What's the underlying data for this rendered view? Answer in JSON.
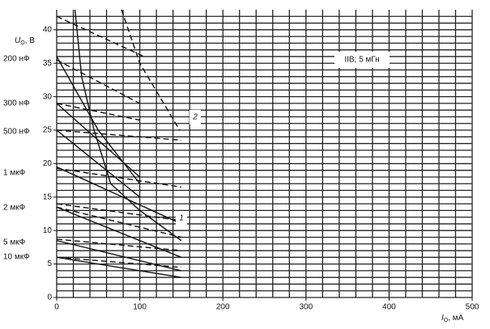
{
  "chart_data": {
    "type": "line",
    "y_label": {
      "symbol": "U",
      "sub": "O",
      "unit": ", В"
    },
    "x_label": {
      "symbol": "I",
      "sub": "O",
      "unit": ", мА"
    },
    "annotation": "IIB; 5 мГн",
    "curve_labels": [
      "1",
      "2"
    ],
    "capacitances": [
      "200 нФ",
      "300 нФ",
      "500 нФ",
      "1 мкФ",
      "2 мкФ",
      "5 мкФ",
      "10 мкФ"
    ],
    "xlim": [
      0,
      500
    ],
    "ylim": [
      0,
      43
    ],
    "xticks": [
      0,
      100,
      200,
      300,
      400,
      500
    ],
    "yticks": [
      0,
      5,
      10,
      15,
      20,
      25,
      30,
      35,
      40
    ],
    "x_grid": [
      0,
      20,
      40,
      60,
      80,
      100,
      120,
      140,
      160,
      180,
      200,
      220,
      240,
      260,
      280,
      300,
      320,
      340,
      360,
      380,
      400,
      420,
      440,
      460,
      480,
      500
    ],
    "y_grid": [
      0,
      1,
      2,
      3,
      4,
      5,
      6,
      7,
      8,
      9,
      10,
      11,
      12,
      13,
      14,
      15,
      16,
      17,
      18,
      19,
      20,
      21,
      22,
      23,
      24,
      25,
      26,
      27,
      28,
      29,
      30,
      31,
      32,
      33,
      34,
      35,
      36,
      37,
      38,
      39,
      40,
      41,
      42
    ],
    "grid": true,
    "series": [
      {
        "color": "#111",
        "dashed": true,
        "x": [
          0,
          105
        ],
        "values": [
          42,
          36
        ]
      },
      {
        "color": "#111",
        "dashed": true,
        "x": [
          0,
          100
        ],
        "values": [
          35.5,
          29
        ]
      },
      {
        "color": "#111",
        "dashed": true,
        "x": [
          0,
          100
        ],
        "values": [
          29,
          26.5
        ]
      },
      {
        "color": "#111",
        "dashed": true,
        "x": [
          0,
          150
        ],
        "values": [
          25,
          23.5
        ]
      },
      {
        "color": "#111",
        "dashed": true,
        "x": [
          0,
          150
        ],
        "values": [
          19.3,
          16.5
        ]
      },
      {
        "color": "#111",
        "dashed": true,
        "x": [
          0,
          150
        ],
        "values": [
          14,
          11.5
        ]
      },
      {
        "color": "#111",
        "dashed": true,
        "x": [
          0,
          150
        ],
        "values": [
          13.5,
          9
        ]
      },
      {
        "color": "#111",
        "dashed": true,
        "x": [
          0,
          150
        ],
        "values": [
          8.7,
          7
        ]
      },
      {
        "color": "#111",
        "dashed": true,
        "x": [
          0,
          150
        ],
        "values": [
          6,
          4.5
        ]
      },
      {
        "color": "#111",
        "dashed": true,
        "x": [
          78,
          100,
          148
        ],
        "values": [
          43,
          35,
          25
        ]
      },
      {
        "color": "#111",
        "dashed": false,
        "x": [
          0,
          50,
          100
        ],
        "values": [
          36,
          25,
          17
        ]
      },
      {
        "color": "#111",
        "dashed": false,
        "x": [
          0,
          100
        ],
        "values": [
          29,
          18
        ]
      },
      {
        "color": "#111",
        "dashed": false,
        "x": [
          0,
          100
        ],
        "values": [
          25,
          15
        ]
      },
      {
        "color": "#111",
        "dashed": false,
        "x": [
          0,
          150
        ],
        "values": [
          19.5,
          11
        ]
      },
      {
        "color": "#111",
        "dashed": false,
        "x": [
          0,
          150
        ],
        "values": [
          13.5,
          6
        ]
      },
      {
        "color": "#111",
        "dashed": false,
        "x": [
          0,
          150
        ],
        "values": [
          8.5,
          4
        ]
      },
      {
        "color": "#111",
        "dashed": false,
        "x": [
          0,
          150
        ],
        "values": [
          6,
          3
        ]
      },
      {
        "color": "#111",
        "dashed": false,
        "x": [
          22,
          30,
          45,
          65,
          100,
          150
        ],
        "values": [
          43,
          33,
          25,
          17,
          13,
          8.5
        ]
      }
    ]
  }
}
